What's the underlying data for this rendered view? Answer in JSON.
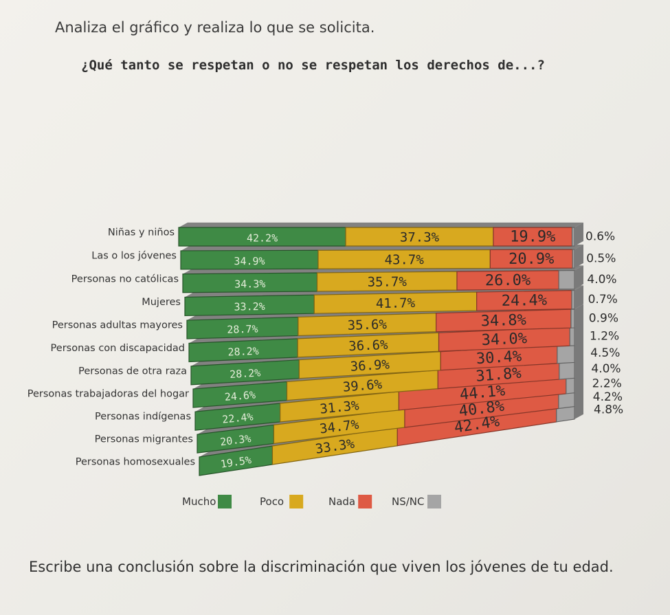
{
  "page": {
    "instruction": "Analiza el gráfico y realiza lo que se solicita.",
    "question": "¿Qué tanto se respetan o no se respetan los derechos de...?",
    "conclusion_prompt": "Escribe una conclusión sobre la discriminación que viven los jóvenes de tu edad."
  },
  "chart_data": {
    "type": "bar",
    "orientation": "horizontal",
    "stacked": true,
    "title": "¿Qué tanto se respetan o no se respetan los derechos de...?",
    "categories": [
      "Niñas y niños",
      "Las o los jóvenes",
      "Personas no católicas",
      "Mujeres",
      "Personas adultas mayores",
      "Personas con discapacidad",
      "Personas de otra raza",
      "Personas trabajadoras del hogar",
      "Personas indígenas",
      "Personas migrantes",
      "Personas homosexuales"
    ],
    "series": [
      {
        "name": "Mucho",
        "color": "#3f8a45",
        "values": [
          42.2,
          34.9,
          34.3,
          33.2,
          28.7,
          28.2,
          28.2,
          24.6,
          22.4,
          20.3,
          19.5
        ],
        "labels": [
          "42.2%",
          "34.9%",
          "34.3%",
          "33.2%",
          "28.7%",
          "28.2%",
          "28.2%",
          "24.6%",
          "22.4%",
          "20.3%",
          "19.5%"
        ]
      },
      {
        "name": "Poco",
        "color": "#d8a91f",
        "values": [
          37.3,
          43.7,
          35.7,
          41.7,
          35.6,
          36.6,
          36.9,
          39.6,
          31.3,
          34.7,
          33.3
        ],
        "labels": [
          "37.3%",
          "43.7%",
          "35.7%",
          "41.7%",
          "35.6%",
          "36.6%",
          "36.9%",
          "39.6%",
          "31.3%",
          "34.7%",
          "33.3%"
        ]
      },
      {
        "name": "Nada",
        "color": "#de5a44",
        "values": [
          19.9,
          20.9,
          26.0,
          24.4,
          34.8,
          34.0,
          30.4,
          31.8,
          44.1,
          40.8,
          42.4
        ],
        "labels": [
          "19.9%",
          "20.9%",
          "26.0%",
          "24.4%",
          "34.8%",
          "34.0%",
          "30.4%",
          "31.8%",
          "44.1%",
          "40.8%",
          "42.4%"
        ]
      },
      {
        "name": "NS/NC",
        "color": "#a5a5a5",
        "values": [
          0.6,
          0.5,
          4.0,
          0.7,
          0.9,
          1.2,
          4.5,
          4.0,
          2.2,
          4.2,
          4.8
        ],
        "labels": [
          "0.6%",
          "0.5%",
          "4.0%",
          "0.7%",
          "0.9%",
          "1.2%",
          "4.5%",
          "4.0%",
          "2.2%",
          "4.2%",
          "4.8%"
        ]
      }
    ],
    "xlim": [
      0,
      100
    ],
    "legend_position": "bottom",
    "grid": false
  }
}
